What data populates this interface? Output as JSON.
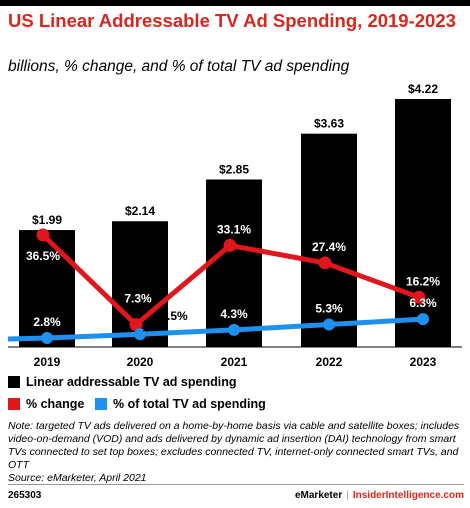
{
  "header": {
    "title": "US Linear Addressable TV Ad Spending, 2019-2023",
    "subtitle": "billions, % change, and % of total TV ad spending"
  },
  "legend": {
    "bar_label": "Linear addressable TV ad spending",
    "change_label": "% change",
    "share_label": "% of total TV ad spending"
  },
  "note": "Note: targeted TV ads delivered on a home-by-home basis via cable and satellite boxes; includes video-on-demand (VOD) and ads delivered by dynamic ad insertion (DAI) technology from smart TVs connected to set top boxes; excludes connected TV, internet-only connected smart TVs, and OTT",
  "source": "Source: eMarketer, April 2021",
  "footer": {
    "chart_id": "265303",
    "brand_emarketer": "eMarketer",
    "brand_separator": "|",
    "brand_insider": "InsiderIntelligence.com"
  },
  "colors": {
    "title_red": "#d9271f",
    "bar": "#000000",
    "change_line": "#e0161c",
    "share_line": "#1f8ff0"
  },
  "chart_data": {
    "type": "bar",
    "categories": [
      "2019",
      "2020",
      "2021",
      "2022",
      "2023"
    ],
    "series": [
      {
        "name": "Linear addressable TV ad spending",
        "kind": "bar",
        "values": [
          1.99,
          2.14,
          2.85,
          3.63,
          4.22
        ],
        "labels": [
          "$1.99",
          "$2.14",
          "$2.85",
          "$3.63",
          "$4.22"
        ]
      },
      {
        "name": "% change",
        "kind": "line",
        "values": [
          36.5,
          7.3,
          33.1,
          27.4,
          16.2
        ],
        "labels": [
          "36.5%",
          "7.3%",
          "33.1%",
          "27.4%",
          "16.2%"
        ]
      },
      {
        "name": "% of total TV ad spending",
        "kind": "line",
        "values": [
          2.8,
          3.5,
          4.3,
          5.3,
          6.3
        ],
        "labels": [
          "2.8%",
          "3.5%",
          "4.3%",
          "5.3%",
          "6.3%"
        ]
      }
    ],
    "legend_position": "bottom-left"
  }
}
